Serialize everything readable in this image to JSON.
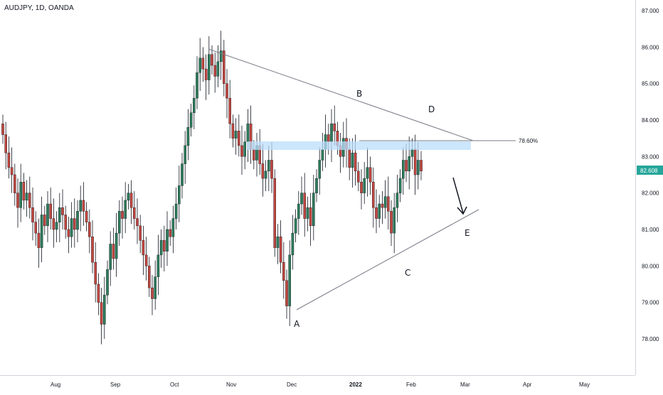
{
  "header": {
    "symbol": "AUDJPY, 1D, OANDA"
  },
  "colors": {
    "up": "#26a69a",
    "down": "#ef5350",
    "up_body": "#2e7d5b",
    "down_body": "#c2473f",
    "line": "#787b86",
    "fib_zone": "#bbdefb"
  },
  "chart_data": {
    "type": "candlestick",
    "y_axis": {
      "ticks": [
        "87.000",
        "86.000",
        "85.000",
        "84.000",
        "83.000",
        "82.000",
        "81.000",
        "80.000",
        "79.000",
        "78.000"
      ],
      "range": [
        77.0,
        87.3
      ]
    },
    "x_axis": {
      "ticks": [
        "Aug",
        "Sep",
        "Oct",
        "Nov",
        "Dec",
        "2022",
        "Feb",
        "Mar",
        "Apr",
        "May"
      ]
    },
    "last_price": "82.608",
    "fib_level": "78.60%",
    "wave_labels": [
      "A",
      "B",
      "C",
      "D",
      "E"
    ],
    "candles_close": [
      83.6,
      83.1,
      82.7,
      82.5,
      82.0,
      81.6,
      82.3,
      81.8,
      82.0,
      81.6,
      81.2,
      80.9,
      80.5,
      81.4,
      81.1,
      81.7,
      81.3,
      81.0,
      81.2,
      81.6,
      81.4,
      81.0,
      80.8,
      81.3,
      81.0,
      81.5,
      81.8,
      81.5,
      81.2,
      80.8,
      80.1,
      79.5,
      79.0,
      78.4,
      79.2,
      79.9,
      80.6,
      80.2,
      80.9,
      81.5,
      81.3,
      81.8,
      82.0,
      81.6,
      81.3,
      81.1,
      80.7,
      80.3,
      80.0,
      79.4,
      79.1,
      79.7,
      80.3,
      80.7,
      80.4,
      81.0,
      80.8,
      81.3,
      81.7,
      82.2,
      82.8,
      83.3,
      83.8,
      84.2,
      84.6,
      85.3,
      85.7,
      85.4,
      85.1,
      85.8,
      85.5,
      85.2,
      85.6,
      85.9,
      85.0,
      84.6,
      83.9,
      83.5,
      83.7,
      83.3,
      83.0,
      83.4,
      83.9,
      83.2,
      82.9,
      83.3,
      82.8,
      82.4,
      82.6,
      82.9,
      82.4,
      80.5,
      80.8,
      80.1,
      79.6,
      78.9,
      80.3,
      80.9,
      81.3,
      81.7,
      82.0,
      81.3,
      81.6,
      81.1,
      82.0,
      82.4,
      82.9,
      83.2,
      83.6,
      83.4,
      83.9,
      83.7,
      83.3,
      83.0,
      83.5,
      83.2,
      82.7,
      83.1,
      82.6,
      82.3,
      82.0,
      82.4,
      82.7,
      82.3,
      81.6,
      81.3,
      81.7,
      81.6,
      81.9,
      81.5,
      80.9,
      81.6,
      82.0,
      82.4,
      82.9,
      82.6,
      83.0,
      83.2,
      82.5,
      82.9,
      82.6
    ],
    "candles_open": [
      83.9,
      83.6,
      83.1,
      82.7,
      82.5,
      82.0,
      81.6,
      82.3,
      81.8,
      82.0,
      81.6,
      81.2,
      80.9,
      80.5,
      81.4,
      81.1,
      81.7,
      81.3,
      81.0,
      81.2,
      81.6,
      81.4,
      81.0,
      80.8,
      81.3,
      81.0,
      81.5,
      81.8,
      81.5,
      81.2,
      80.8,
      80.1,
      79.5,
      79.0,
      78.4,
      79.2,
      79.9,
      80.6,
      80.2,
      80.9,
      81.5,
      81.3,
      81.8,
      82.0,
      81.6,
      81.3,
      81.1,
      80.7,
      80.3,
      80.0,
      79.4,
      79.1,
      79.7,
      80.3,
      80.7,
      80.4,
      81.0,
      80.8,
      81.3,
      81.7,
      82.2,
      82.8,
      83.3,
      83.8,
      84.2,
      84.6,
      85.3,
      85.7,
      85.4,
      85.1,
      85.8,
      85.5,
      85.2,
      85.6,
      85.9,
      85.0,
      84.6,
      83.9,
      83.5,
      83.7,
      83.3,
      83.0,
      83.4,
      83.9,
      83.2,
      82.9,
      83.3,
      82.8,
      82.4,
      82.6,
      82.9,
      82.4,
      80.5,
      80.8,
      80.1,
      79.6,
      78.9,
      80.3,
      80.9,
      81.3,
      81.7,
      82.0,
      81.3,
      81.6,
      81.1,
      82.0,
      82.4,
      82.9,
      83.2,
      83.6,
      83.4,
      83.9,
      83.7,
      83.3,
      83.0,
      83.5,
      83.2,
      82.7,
      83.1,
      82.6,
      82.3,
      82.0,
      82.4,
      82.7,
      82.3,
      81.6,
      81.3,
      81.7,
      81.6,
      81.9,
      81.5,
      80.9,
      81.6,
      82.0,
      82.4,
      82.9,
      82.6,
      83.0,
      83.2,
      82.5,
      82.9
    ]
  }
}
